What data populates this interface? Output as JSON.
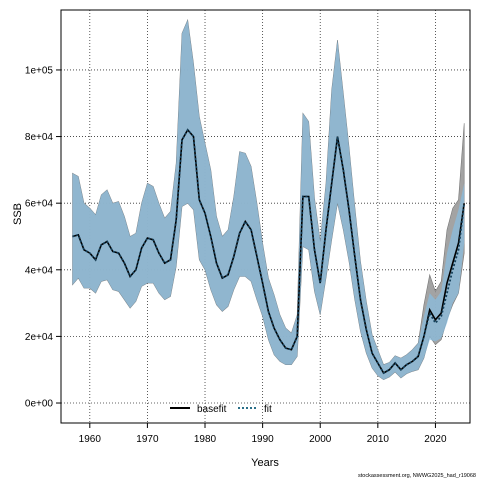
{
  "chart_data": {
    "type": "area",
    "title": "",
    "xlabel": "Years",
    "ylabel": "SSB",
    "xlim": [
      1955,
      2026
    ],
    "ylim": [
      -6000,
      118000
    ],
    "x_ticks": [
      1960,
      1970,
      1980,
      1990,
      2000,
      2010,
      2020
    ],
    "y_ticks": [
      0,
      20000,
      40000,
      60000,
      80000,
      100000
    ],
    "y_tick_labels": [
      "0e+00",
      "2e+04",
      "4e+04",
      "6e+04",
      "8e+04",
      "1e+05"
    ],
    "grid": true,
    "legend": {
      "placement": "bottom-center",
      "entries": [
        {
          "name": "basefit",
          "style": "solid",
          "color": "#000000"
        },
        {
          "name": "fit",
          "style": "dotted",
          "color": "#2a6f88"
        }
      ]
    },
    "colors": {
      "basefit_band": "#9e9e9e",
      "fit_band": "#87bde1",
      "fit_line": "#16405a"
    },
    "watermark": "stockassessment.org, NWWG2025_had_r19068",
    "years": [
      1957,
      1958,
      1959,
      1960,
      1961,
      1962,
      1963,
      1964,
      1965,
      1966,
      1967,
      1968,
      1969,
      1970,
      1971,
      1972,
      1973,
      1974,
      1975,
      1976,
      1977,
      1978,
      1979,
      1980,
      1981,
      1982,
      1983,
      1984,
      1985,
      1986,
      1987,
      1988,
      1989,
      1990,
      1991,
      1992,
      1993,
      1994,
      1995,
      1996,
      1997,
      1998,
      1999,
      2000,
      2001,
      2002,
      2003,
      2004,
      2005,
      2006,
      2007,
      2008,
      2009,
      2010,
      2011,
      2012,
      2013,
      2014,
      2015,
      2016,
      2017,
      2018,
      2019,
      2020,
      2021,
      2022,
      2023,
      2024,
      2025
    ],
    "series": [
      {
        "name": "basefit",
        "values": [
          50000,
          50500,
          46000,
          45000,
          43000,
          47500,
          48500,
          45500,
          45000,
          42000,
          38000,
          40000,
          46500,
          49500,
          49000,
          45000,
          42000,
          43000,
          55000,
          79000,
          82000,
          80000,
          61000,
          57000,
          50000,
          42000,
          37500,
          38500,
          44000,
          51000,
          54500,
          52000,
          44000,
          36000,
          27500,
          22500,
          19000,
          16500,
          16000,
          20000,
          62000,
          62000,
          46000,
          36000,
          52000,
          66000,
          80000,
          70000,
          58000,
          44000,
          31000,
          22000,
          15000,
          12000,
          9000,
          10000,
          12000,
          10000,
          11500,
          12500,
          14000,
          20000,
          28000,
          25000,
          27000,
          36000,
          42000,
          48000,
          60000
        ],
        "lower": [
          35500,
          37500,
          34500,
          34500,
          33000,
          36500,
          37000,
          34000,
          33500,
          31000,
          28500,
          30500,
          35000,
          36000,
          36000,
          33000,
          31000,
          32000,
          41000,
          59000,
          60000,
          58000,
          43000,
          40000,
          34000,
          29500,
          27500,
          29000,
          34000,
          38000,
          38000,
          36500,
          31000,
          26000,
          19000,
          14500,
          12500,
          11500,
          11500,
          14000,
          47000,
          46000,
          33500,
          26500,
          37500,
          49000,
          60000,
          52000,
          42500,
          31000,
          21500,
          15000,
          10500,
          8200,
          7000,
          7800,
          9300,
          7500,
          8800,
          9500,
          10000,
          13500,
          20000,
          17500,
          19000,
          25000,
          29500,
          33000,
          45000
        ],
        "upper": [
          69000,
          68000,
          60000,
          58500,
          56500,
          62500,
          64000,
          60000,
          60500,
          56000,
          50000,
          51000,
          60000,
          66000,
          65000,
          60000,
          55500,
          57500,
          72000,
          111000,
          115000,
          102000,
          86000,
          78000,
          70000,
          56000,
          50000,
          52000,
          62000,
          75500,
          75000,
          71000,
          60000,
          48000,
          37500,
          32500,
          26500,
          22500,
          21000,
          26500,
          87000,
          84500,
          61500,
          48500,
          66000,
          94000,
          109000,
          93000,
          77000,
          59000,
          42500,
          30500,
          20500,
          16000,
          11500,
          12200,
          14200,
          13500,
          14500,
          16000,
          18000,
          29500,
          38500,
          33500,
          36500,
          52000,
          58500,
          61000,
          84000
        ]
      },
      {
        "name": "fit",
        "values": [
          50000,
          50500,
          46000,
          45000,
          43000,
          47500,
          48500,
          45500,
          45000,
          42000,
          38000,
          40000,
          46500,
          49500,
          49000,
          45000,
          42000,
          43000,
          55000,
          79000,
          82000,
          80000,
          61000,
          57000,
          50000,
          42000,
          37500,
          38500,
          44000,
          51000,
          54500,
          52000,
          44000,
          36000,
          27500,
          22500,
          19000,
          16500,
          16000,
          20000,
          62000,
          62000,
          46000,
          36000,
          52000,
          66000,
          80000,
          70000,
          58000,
          44000,
          31000,
          22000,
          15000,
          12000,
          9000,
          10000,
          12000,
          10000,
          11500,
          12500,
          14000,
          20000,
          27000,
          24000,
          26000,
          33000,
          40000,
          46000,
          60000
        ],
        "lower": [
          35500,
          37500,
          34500,
          34500,
          33000,
          36500,
          37000,
          34000,
          33500,
          31000,
          28500,
          30500,
          35000,
          36000,
          36000,
          33000,
          31000,
          32000,
          41000,
          59000,
          60000,
          58000,
          43000,
          40000,
          34000,
          29500,
          27500,
          29000,
          34000,
          38000,
          38000,
          36500,
          31000,
          26000,
          19000,
          14500,
          12500,
          11500,
          11500,
          14000,
          47000,
          46000,
          33500,
          26500,
          37500,
          49000,
          60000,
          52000,
          42500,
          31000,
          21500,
          15000,
          10500,
          8200,
          7000,
          7800,
          9300,
          7500,
          8800,
          9500,
          10000,
          13500,
          19000,
          18500,
          19500,
          24000,
          30000,
          33000,
          48000
        ],
        "upper": [
          69000,
          68000,
          60000,
          58500,
          56500,
          62500,
          64000,
          60000,
          60500,
          56000,
          50000,
          51000,
          60000,
          66000,
          65000,
          60000,
          55500,
          57500,
          72000,
          111000,
          115000,
          102000,
          86000,
          78000,
          70000,
          56000,
          50000,
          52000,
          62000,
          75500,
          75000,
          71000,
          60000,
          48000,
          37500,
          32500,
          26500,
          22500,
          21000,
          26500,
          87000,
          84500,
          61500,
          48500,
          66000,
          94000,
          109000,
          93000,
          77000,
          59000,
          42500,
          30500,
          20500,
          16000,
          11500,
          12200,
          14200,
          13500,
          14500,
          16000,
          18000,
          26000,
          33000,
          31000,
          33500,
          45000,
          52000,
          58000,
          66000
        ]
      }
    ]
  }
}
